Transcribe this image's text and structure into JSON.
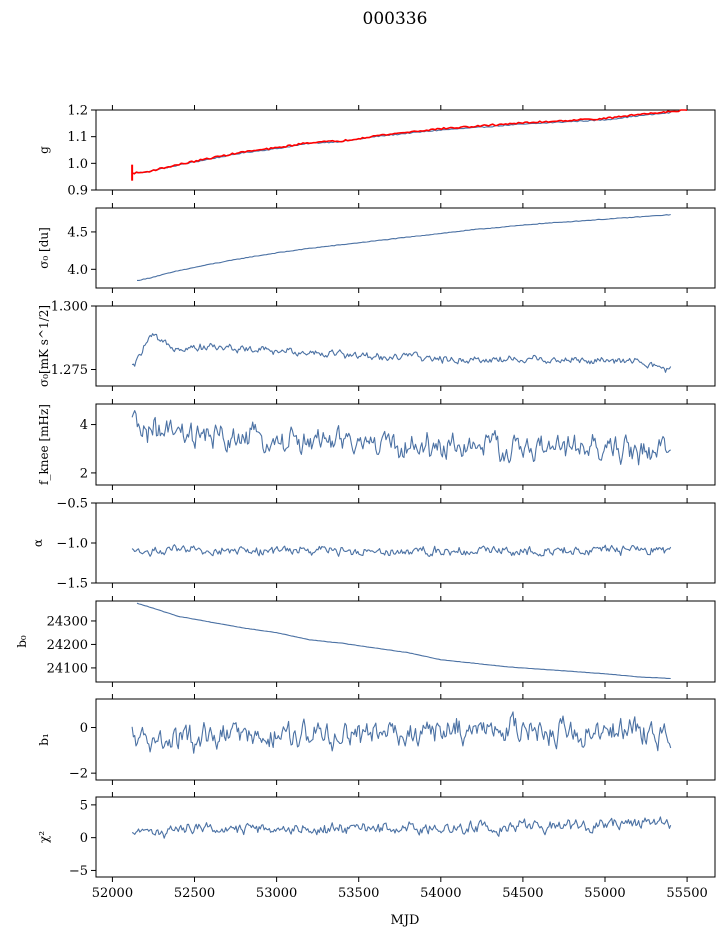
{
  "title": "000336",
  "xlabel": "MJD",
  "xlim": [
    51900,
    55670
  ],
  "xticks": [
    52000,
    52500,
    53000,
    53500,
    54000,
    54500,
    55000,
    55500
  ],
  "colors": {
    "series": "#4c72a4",
    "reference": "#ff0000",
    "axes": "#000000"
  },
  "chart_data": [
    {
      "type": "line",
      "ylabel": "g",
      "ylim": [
        0.9,
        1.2
      ],
      "yticks": [
        "0.9",
        "1.0",
        "1.1",
        "1.2"
      ],
      "grid": false,
      "series": [
        {
          "style": "smooth",
          "color": "#4c72a4",
          "noise": 0.002,
          "x": [
            52120,
            52200,
            52400,
            52600,
            52800,
            53000,
            53200,
            53400,
            53600,
            53800,
            54000,
            54200,
            54400,
            54600,
            54800,
            55000,
            55200,
            55400
          ],
          "y": [
            0.963,
            0.967,
            0.993,
            1.017,
            1.04,
            1.055,
            1.075,
            1.082,
            1.1,
            1.113,
            1.125,
            1.133,
            1.143,
            1.15,
            1.157,
            1.163,
            1.178,
            1.19
          ]
        },
        {
          "style": "smooth",
          "color": "#ff0000",
          "noise": 0.003,
          "x": [
            52120,
            52200,
            52400,
            52600,
            52800,
            53000,
            53200,
            53400,
            53600,
            53800,
            54000,
            54200,
            54400,
            54600,
            54800,
            55000,
            55200,
            55400,
            55500
          ],
          "y": [
            0.963,
            0.967,
            0.995,
            1.02,
            1.043,
            1.058,
            1.078,
            1.084,
            1.103,
            1.117,
            1.13,
            1.138,
            1.148,
            1.155,
            1.162,
            1.168,
            1.183,
            1.195,
            1.2
          ]
        }
      ]
    },
    {
      "type": "line",
      "ylabel": "σ₀ [du]",
      "ylim": [
        3.75,
        4.82
      ],
      "yticks": [
        "4.0",
        "4.5"
      ],
      "grid": false,
      "series": [
        {
          "style": "smooth",
          "color": "#4c72a4",
          "noise": 0.004,
          "x": [
            52150,
            52200,
            52400,
            52600,
            52800,
            53000,
            53200,
            53400,
            53600,
            53800,
            54000,
            54200,
            54400,
            54600,
            54800,
            55000,
            55200,
            55400
          ],
          "y": [
            3.85,
            3.87,
            3.98,
            4.07,
            4.15,
            4.22,
            4.28,
            4.33,
            4.38,
            4.43,
            4.48,
            4.53,
            4.57,
            4.61,
            4.64,
            4.67,
            4.7,
            4.73
          ]
        }
      ]
    },
    {
      "type": "line",
      "ylabel": "σ₀[mK s^1/2]",
      "ylim": [
        1.2685,
        1.3
      ],
      "yticks": [
        "1.275",
        "1.300"
      ],
      "grid": false,
      "series": [
        {
          "style": "noisy",
          "color": "#4c72a4",
          "noise": 0.0012,
          "x": [
            52120,
            52150,
            52200,
            52250,
            52300,
            52400,
            52600,
            52800,
            53000,
            53200,
            53400,
            53600,
            53800,
            54000,
            54200,
            54400,
            54600,
            54800,
            55000,
            55200,
            55300,
            55400
          ],
          "y": [
            1.276,
            1.278,
            1.285,
            1.288,
            1.285,
            1.284,
            1.284,
            1.283,
            1.282,
            1.282,
            1.281,
            1.28,
            1.28,
            1.279,
            1.279,
            1.279,
            1.279,
            1.279,
            1.278,
            1.278,
            1.276,
            1.275
          ]
        }
      ]
    },
    {
      "type": "line",
      "ylabel": "f_knee [mHz]",
      "ylim": [
        1.5,
        4.85
      ],
      "yticks": [
        "2",
        "4"
      ],
      "grid": false,
      "series": [
        {
          "style": "noisy",
          "color": "#4c72a4",
          "noise": 0.42,
          "x": [
            52120,
            52200,
            52400,
            52600,
            52800,
            53000,
            53200,
            53400,
            53600,
            53800,
            54000,
            54200,
            54400,
            54600,
            54800,
            55000,
            55200,
            55400
          ],
          "y": [
            4.0,
            3.8,
            3.5,
            3.4,
            3.4,
            3.3,
            3.3,
            3.2,
            3.2,
            3.1,
            3.1,
            3.1,
            3.0,
            3.0,
            3.0,
            3.0,
            2.9,
            2.9
          ]
        }
      ]
    },
    {
      "type": "line",
      "ylabel": "α",
      "ylim": [
        -1.5,
        -0.5
      ],
      "yticks": [
        "−1.5",
        "−1.0",
        "−0.5"
      ],
      "grid": false,
      "series": [
        {
          "style": "noisy",
          "color": "#4c72a4",
          "noise": 0.045,
          "x": [
            52120,
            55400
          ],
          "y": [
            -1.1,
            -1.09
          ]
        }
      ]
    },
    {
      "type": "line",
      "ylabel": "b₀",
      "ylim": [
        24040,
        24385
      ],
      "yticks": [
        "24100",
        "24200",
        "24300"
      ],
      "grid": false,
      "series": [
        {
          "style": "smooth",
          "color": "#4c72a4",
          "noise": 0.6,
          "x": [
            52150,
            52200,
            52400,
            52600,
            52800,
            53000,
            53200,
            53400,
            53600,
            53800,
            54000,
            54200,
            54400,
            54600,
            54800,
            55000,
            55200,
            55400
          ],
          "y": [
            24375,
            24365,
            24320,
            24295,
            24270,
            24250,
            24220,
            24205,
            24185,
            24165,
            24135,
            24120,
            24105,
            24095,
            24085,
            24075,
            24062,
            24055
          ]
        }
      ]
    },
    {
      "type": "line",
      "ylabel": "b₁",
      "ylim": [
        -2.3,
        1.25
      ],
      "yticks": [
        "−2",
        "0"
      ],
      "grid": false,
      "series": [
        {
          "style": "noisy",
          "color": "#4c72a4",
          "noise": 0.45,
          "x": [
            52120,
            52400,
            53000,
            53600,
            54200,
            54800,
            55400
          ],
          "y": [
            -0.5,
            -0.6,
            -0.4,
            -0.3,
            -0.1,
            -0.1,
            -0.3
          ]
        }
      ]
    },
    {
      "type": "line",
      "ylabel": "χ²",
      "ylim": [
        -6,
        6.2
      ],
      "yticks": [
        "−5",
        "0",
        "5"
      ],
      "grid": false,
      "series": [
        {
          "style": "noisy",
          "color": "#4c72a4",
          "noise": 0.7,
          "x": [
            52120,
            52200,
            52400,
            53000,
            53600,
            54200,
            54800,
            55400
          ],
          "y": [
            0.0,
            1.0,
            1.2,
            1.3,
            1.5,
            1.6,
            1.8,
            2.3
          ]
        }
      ]
    }
  ]
}
